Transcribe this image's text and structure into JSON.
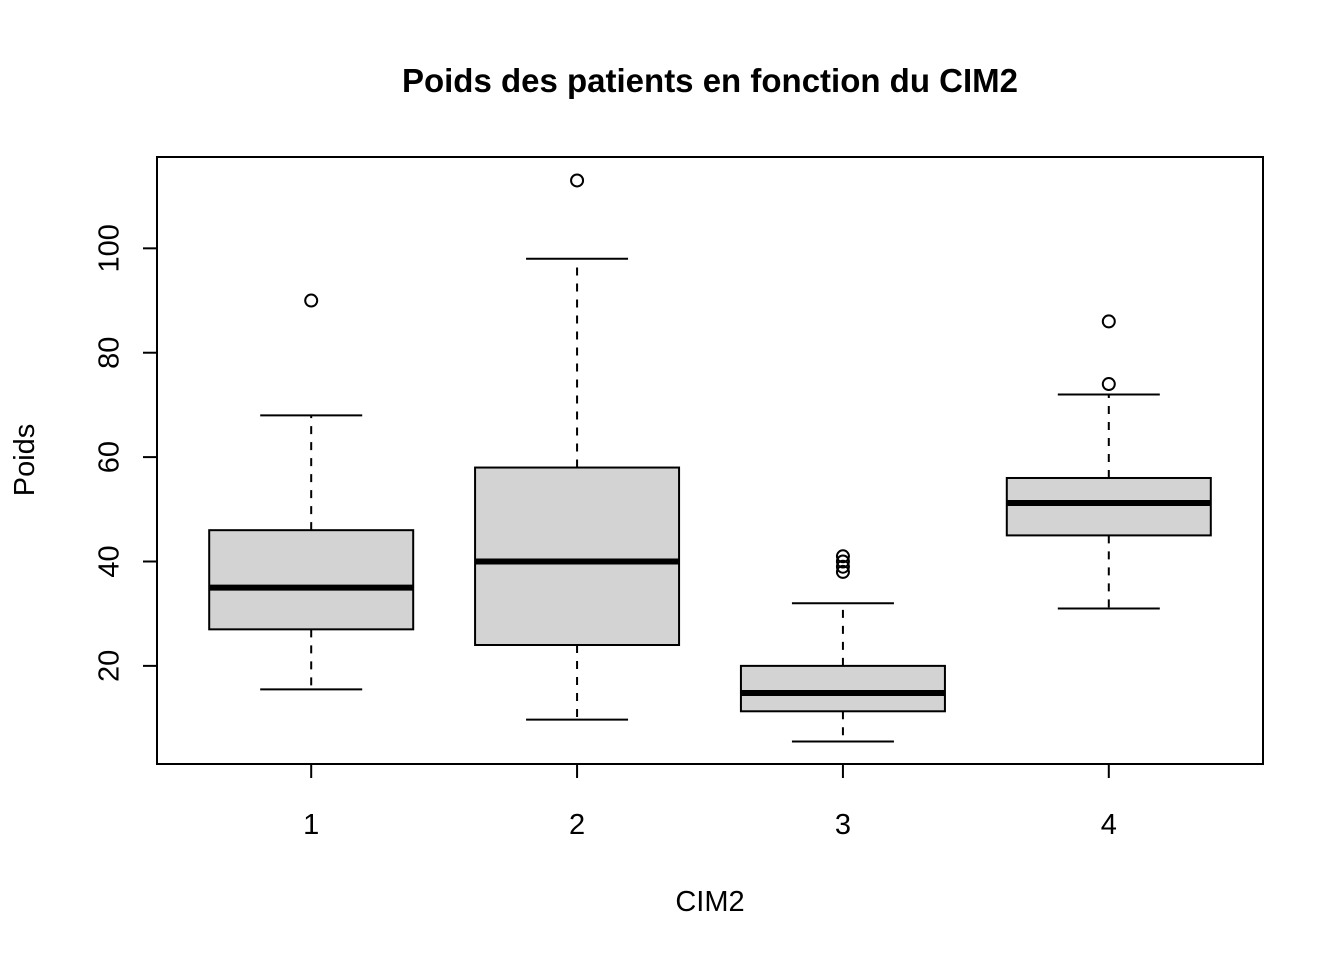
{
  "chart_data": {
    "type": "boxplot",
    "title": "Poids des patients en fonction du CIM2",
    "xlabel": "CIM2",
    "ylabel": "Poids",
    "categories": [
      "1",
      "2",
      "3",
      "4"
    ],
    "ylim": [
      1.2,
      117.5
    ],
    "yticks": [
      20,
      40,
      60,
      80,
      100
    ],
    "boxes": [
      {
        "category": "1",
        "whisker_low": 15.5,
        "q1": 27,
        "median": 35,
        "q3": 46,
        "whisker_high": 68,
        "outliers": [
          90
        ]
      },
      {
        "category": "2",
        "whisker_low": 9.7,
        "q1": 24,
        "median": 40,
        "q3": 58,
        "whisker_high": 98,
        "outliers": [
          113
        ]
      },
      {
        "category": "3",
        "whisker_low": 5.5,
        "q1": 11.3,
        "median": 14.8,
        "q3": 20,
        "whisker_high": 32,
        "outliers": [
          38,
          39,
          40,
          41
        ]
      },
      {
        "category": "4",
        "whisker_low": 31,
        "q1": 45,
        "median": 51.2,
        "q3": 56,
        "whisker_high": 72,
        "outliers": [
          74,
          86
        ]
      }
    ],
    "box_fill": "#d3d3d3",
    "grid": false,
    "legend": "none"
  }
}
